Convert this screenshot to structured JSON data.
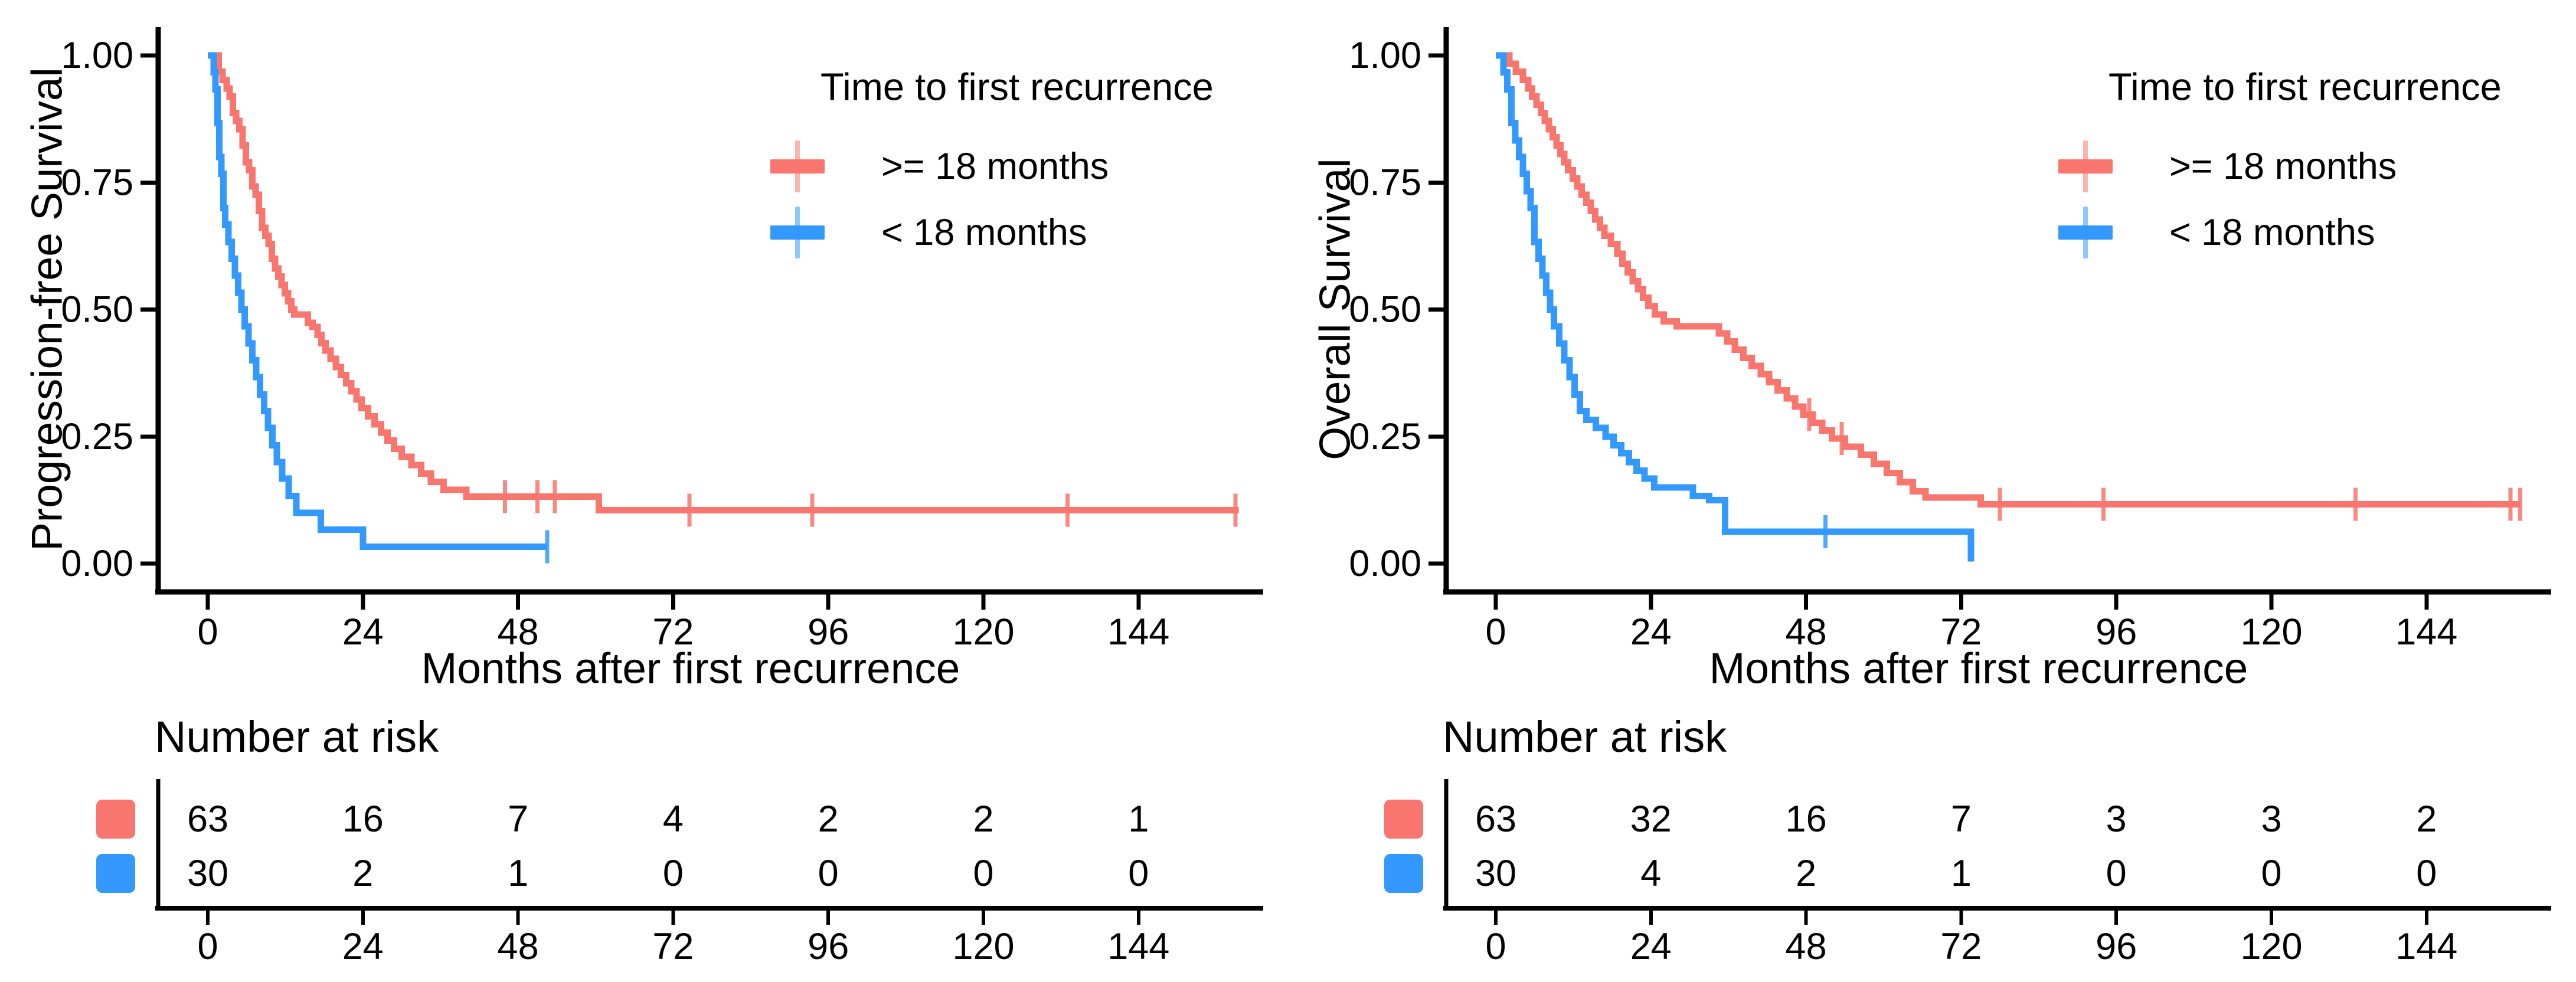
{
  "figure": {
    "background": "#ffffff",
    "text_color": "#000000",
    "group_colors": {
      "ge18": "#F8766D",
      "lt18": "#3399FF"
    }
  },
  "chart_data": [
    {
      "type": "line",
      "subtype": "kaplan-meier-step",
      "ylabel": "Progression-free Survival",
      "xlabel": "Months after first recurrence",
      "xlim": [
        0,
        162
      ],
      "ylim": [
        0,
        1
      ],
      "grid": "off",
      "legend_position": "top-right-inside",
      "legend": {
        "title": "Time to first recurrence",
        "items": [
          {
            "label": ">= 18 months",
            "color": "#F8766D"
          },
          {
            "label": "< 18 months",
            "color": "#3399FF"
          }
        ]
      },
      "y_ticks": [
        {
          "label": "1.00",
          "value": 1
        },
        {
          "label": "0.75",
          "value": 0.75
        },
        {
          "label": "0.50",
          "value": 0.5
        },
        {
          "label": "0.25",
          "value": 0.25
        },
        {
          "label": "0.00",
          "value": 0
        }
      ],
      "x_ticks": [
        0,
        24,
        48,
        72,
        96,
        120,
        144
      ],
      "series": [
        {
          "name": ">= 18 months",
          "color": "#F8766D",
          "steps": [
            [
              0,
              1
            ],
            [
              1.7,
              1
            ],
            [
              1.7,
              0.968
            ],
            [
              2.3,
              0.952
            ],
            [
              2.9,
              0.935
            ],
            [
              3.4,
              0.919
            ],
            [
              3.9,
              0.887
            ],
            [
              4.4,
              0.871
            ],
            [
              4.9,
              0.855
            ],
            [
              5.4,
              0.823
            ],
            [
              5.9,
              0.79
            ],
            [
              6.4,
              0.774
            ],
            [
              6.9,
              0.742
            ],
            [
              7.4,
              0.726
            ],
            [
              7.9,
              0.694
            ],
            [
              8.4,
              0.661
            ],
            [
              8.9,
              0.645
            ],
            [
              9.4,
              0.629
            ],
            [
              9.9,
              0.6
            ],
            [
              10.4,
              0.581
            ],
            [
              10.9,
              0.565
            ],
            [
              11.4,
              0.548
            ],
            [
              11.9,
              0.532
            ],
            [
              12.4,
              0.516
            ],
            [
              12.9,
              0.5
            ],
            [
              13.4,
              0.49
            ],
            [
              15.5,
              0.474
            ],
            [
              16.2,
              0.466
            ],
            [
              17,
              0.45
            ],
            [
              17.6,
              0.434
            ],
            [
              18.2,
              0.419
            ],
            [
              19,
              0.403
            ],
            [
              19.8,
              0.387
            ],
            [
              20.6,
              0.371
            ],
            [
              21.4,
              0.355
            ],
            [
              22.2,
              0.339
            ],
            [
              23,
              0.323
            ],
            [
              23.8,
              0.306
            ],
            [
              24.8,
              0.29
            ],
            [
              25.8,
              0.274
            ],
            [
              26.8,
              0.258
            ],
            [
              27.8,
              0.242
            ],
            [
              28.8,
              0.226
            ],
            [
              30,
              0.21
            ],
            [
              31.5,
              0.194
            ],
            [
              33,
              0.177
            ],
            [
              34.5,
              0.161
            ],
            [
              36.5,
              0.145
            ],
            [
              40,
              0.132
            ],
            [
              60.5,
              0.105
            ],
            [
              159.5,
              0.105
            ]
          ],
          "censor_times": [
            46,
            51,
            53.7,
            74.5,
            93.5,
            133,
            159
          ]
        },
        {
          "name": "< 18 months",
          "color": "#3399FF",
          "steps": [
            [
              0,
              1
            ],
            [
              0.9,
              1
            ],
            [
              0.9,
              0.967
            ],
            [
              1.2,
              0.933
            ],
            [
              1.5,
              0.867
            ],
            [
              1.8,
              0.8
            ],
            [
              2.1,
              0.767
            ],
            [
              2.4,
              0.7
            ],
            [
              2.7,
              0.667
            ],
            [
              3.2,
              0.633
            ],
            [
              3.7,
              0.6
            ],
            [
              4.2,
              0.567
            ],
            [
              4.7,
              0.533
            ],
            [
              5.2,
              0.5
            ],
            [
              5.7,
              0.467
            ],
            [
              6.3,
              0.433
            ],
            [
              6.9,
              0.4
            ],
            [
              7.5,
              0.367
            ],
            [
              8.1,
              0.333
            ],
            [
              8.7,
              0.3
            ],
            [
              9.3,
              0.267
            ],
            [
              10,
              0.233
            ],
            [
              10.7,
              0.2
            ],
            [
              11.5,
              0.167
            ],
            [
              12.5,
              0.133
            ],
            [
              13.7,
              0.1
            ],
            [
              17.5,
              0.067
            ],
            [
              24,
              0.033
            ],
            [
              52.5,
              0.033
            ]
          ],
          "censor_times": [
            52.5
          ]
        }
      ],
      "risk_table": {
        "title": "Number at risk",
        "time_points": [
          0,
          24,
          48,
          72,
          96,
          120,
          144
        ],
        "rows": [
          {
            "group": ">= 18 months",
            "color": "#F8766D",
            "counts": [
              63,
              16,
              7,
              4,
              2,
              2,
              1
            ]
          },
          {
            "group": "< 18 months",
            "color": "#3399FF",
            "counts": [
              30,
              2,
              1,
              0,
              0,
              0,
              0
            ]
          }
        ]
      }
    },
    {
      "type": "line",
      "subtype": "kaplan-meier-step",
      "ylabel": "Overall Survival",
      "xlabel": "Months after first recurrence",
      "xlim": [
        0,
        162
      ],
      "ylim": [
        0,
        1
      ],
      "grid": "off",
      "legend_position": "top-right-inside",
      "legend": {
        "title": "Time to first recurrence",
        "items": [
          {
            "label": ">= 18 months",
            "color": "#F8766D"
          },
          {
            "label": "< 18 months",
            "color": "#3399FF"
          }
        ]
      },
      "y_ticks": [
        {
          "label": "1.00",
          "value": 1
        },
        {
          "label": "0.75",
          "value": 0.75
        },
        {
          "label": "0.50",
          "value": 0.5
        },
        {
          "label": "0.25",
          "value": 0.25
        },
        {
          "label": "0.00",
          "value": 0
        }
      ],
      "x_ticks": [
        0,
        24,
        48,
        72,
        96,
        120,
        144
      ],
      "series": [
        {
          "name": ">= 18 months",
          "color": "#F8766D",
          "steps": [
            [
              0,
              1
            ],
            [
              2.1,
              1
            ],
            [
              2.1,
              0.984
            ],
            [
              3.1,
              0.968
            ],
            [
              4.2,
              0.952
            ],
            [
              5,
              0.935
            ],
            [
              5.6,
              0.919
            ],
            [
              6.3,
              0.903
            ],
            [
              7,
              0.887
            ],
            [
              7.6,
              0.871
            ],
            [
              8.2,
              0.855
            ],
            [
              8.8,
              0.839
            ],
            [
              9.4,
              0.823
            ],
            [
              10,
              0.806
            ],
            [
              10.6,
              0.79
            ],
            [
              11.2,
              0.774
            ],
            [
              11.9,
              0.758
            ],
            [
              12.6,
              0.742
            ],
            [
              13.3,
              0.726
            ],
            [
              14,
              0.71
            ],
            [
              14.7,
              0.694
            ],
            [
              15.4,
              0.677
            ],
            [
              16.1,
              0.661
            ],
            [
              16.8,
              0.645
            ],
            [
              17.8,
              0.629
            ],
            [
              18.8,
              0.61
            ],
            [
              19.6,
              0.59
            ],
            [
              20.4,
              0.573
            ],
            [
              21.2,
              0.556
            ],
            [
              22,
              0.54
            ],
            [
              22.8,
              0.523
            ],
            [
              23.6,
              0.507
            ],
            [
              24.6,
              0.49
            ],
            [
              26,
              0.477
            ],
            [
              28,
              0.467
            ],
            [
              34.5,
              0.453
            ],
            [
              35.8,
              0.437
            ],
            [
              37,
              0.421
            ],
            [
              38.3,
              0.405
            ],
            [
              39.6,
              0.389
            ],
            [
              41,
              0.373
            ],
            [
              42.3,
              0.357
            ],
            [
              43.6,
              0.341
            ],
            [
              45,
              0.325
            ],
            [
              46.3,
              0.309
            ],
            [
              47.6,
              0.293
            ],
            [
              49,
              0.277
            ],
            [
              50.5,
              0.262
            ],
            [
              52,
              0.246
            ],
            [
              54,
              0.23
            ],
            [
              56.5,
              0.214
            ],
            [
              58.5,
              0.196
            ],
            [
              60.5,
              0.178
            ],
            [
              62.5,
              0.16
            ],
            [
              64.5,
              0.142
            ],
            [
              66.5,
              0.13
            ],
            [
              75,
              0.117
            ],
            [
              158.5,
              0.117
            ]
          ],
          "censor_times": [
            48.5,
            53.5,
            78,
            94,
            133,
            157,
            158.5
          ]
        },
        {
          "name": "< 18 months",
          "color": "#3399FF",
          "steps": [
            [
              0,
              1
            ],
            [
              1.2,
              1
            ],
            [
              1.2,
              0.967
            ],
            [
              1.8,
              0.933
            ],
            [
              2.4,
              0.867
            ],
            [
              3,
              0.833
            ],
            [
              3.6,
              0.8
            ],
            [
              4.2,
              0.767
            ],
            [
              4.8,
              0.733
            ],
            [
              5.4,
              0.7
            ],
            [
              6,
              0.633
            ],
            [
              6.6,
              0.6
            ],
            [
              7.2,
              0.567
            ],
            [
              7.8,
              0.533
            ],
            [
              8.4,
              0.5
            ],
            [
              9,
              0.467
            ],
            [
              9.8,
              0.433
            ],
            [
              10.6,
              0.4
            ],
            [
              11.4,
              0.367
            ],
            [
              12.2,
              0.333
            ],
            [
              13,
              0.3
            ],
            [
              14,
              0.283
            ],
            [
              15.5,
              0.267
            ],
            [
              17,
              0.25
            ],
            [
              18.2,
              0.233
            ],
            [
              19.4,
              0.217
            ],
            [
              20.6,
              0.2
            ],
            [
              21.8,
              0.183
            ],
            [
              23,
              0.167
            ],
            [
              24.5,
              0.15
            ],
            [
              30.5,
              0.133
            ],
            [
              33,
              0.125
            ],
            [
              35.5,
              0.063
            ],
            [
              73.5,
              0.063
            ],
            [
              73.5,
              0.004
            ]
          ],
          "censor_times": [
            51
          ]
        }
      ],
      "risk_table": {
        "title": "Number at risk",
        "time_points": [
          0,
          24,
          48,
          72,
          96,
          120,
          144
        ],
        "rows": [
          {
            "group": ">= 18 months",
            "color": "#F8766D",
            "counts": [
              63,
              32,
              16,
              7,
              3,
              3,
              2
            ]
          },
          {
            "group": "< 18 months",
            "color": "#3399FF",
            "counts": [
              30,
              4,
              2,
              1,
              0,
              0,
              0
            ]
          }
        ]
      }
    }
  ]
}
